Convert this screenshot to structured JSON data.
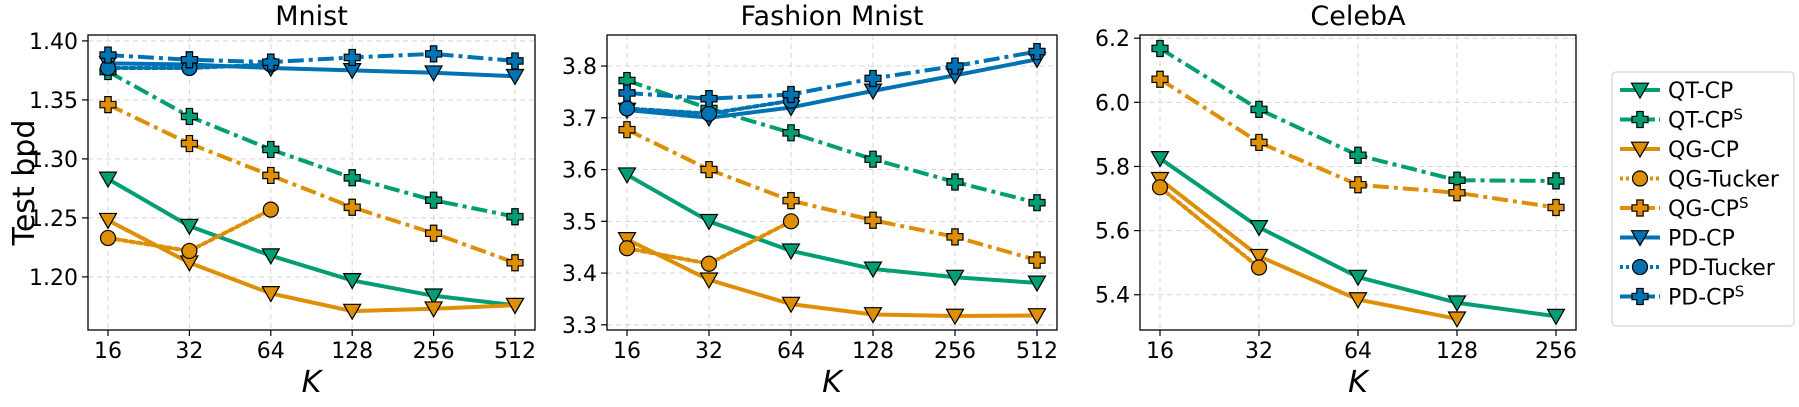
{
  "chart_data": [
    {
      "type": "line",
      "title": "Mnist",
      "xlabel": "K",
      "ylabel": "Test bpd",
      "x": [
        16,
        32,
        64,
        128,
        256,
        512
      ],
      "xscale": "log2",
      "ylim": [
        1.155,
        1.405
      ],
      "yticks": [
        1.2,
        1.25,
        1.3,
        1.35,
        1.4
      ],
      "grid": true,
      "series": [
        {
          "name": "QT-CP",
          "values": [
            1.283,
            1.243,
            1.218,
            1.197,
            1.184,
            1.176
          ]
        },
        {
          "name": "QT-CP^S",
          "values": [
            1.374,
            1.336,
            1.308,
            1.284,
            1.265,
            1.251
          ]
        },
        {
          "name": "QG-CP",
          "values": [
            1.248,
            1.212,
            1.186,
            1.171,
            1.173,
            1.176
          ]
        },
        {
          "name": "QG-Tucker",
          "values": [
            1.233,
            1.222,
            1.257,
            null,
            null,
            null
          ]
        },
        {
          "name": "QG-CP^S",
          "values": [
            1.346,
            1.313,
            1.286,
            1.259,
            1.237,
            1.212
          ]
        },
        {
          "name": "PD-CP",
          "values": [
            1.381,
            1.38,
            1.377,
            1.375,
            1.373,
            1.37
          ]
        },
        {
          "name": "PD-Tucker",
          "values": [
            1.377,
            1.377,
            1.38,
            null,
            null,
            null
          ]
        },
        {
          "name": "PD-CP^S",
          "values": [
            1.388,
            1.384,
            1.382,
            1.386,
            1.389,
            1.383
          ]
        }
      ]
    },
    {
      "type": "line",
      "title": "Fashion Mnist",
      "xlabel": "K",
      "ylabel": "",
      "x": [
        16,
        32,
        64,
        128,
        256,
        512
      ],
      "xscale": "log2",
      "ylim": [
        3.29,
        3.86
      ],
      "yticks": [
        3.3,
        3.4,
        3.5,
        3.6,
        3.7,
        3.8
      ],
      "grid": true,
      "series": [
        {
          "name": "QT-CP",
          "values": [
            3.59,
            3.5,
            3.443,
            3.408,
            3.392,
            3.381
          ]
        },
        {
          "name": "QT-CP^S",
          "values": [
            3.772,
            3.718,
            3.671,
            3.62,
            3.576,
            3.536
          ]
        },
        {
          "name": "QG-CP",
          "values": [
            3.465,
            3.387,
            3.34,
            3.32,
            3.317,
            3.318
          ]
        },
        {
          "name": "QG-Tucker",
          "values": [
            3.448,
            3.418,
            3.5,
            null,
            null,
            null
          ]
        },
        {
          "name": "QG-CP^S",
          "values": [
            3.677,
            3.6,
            3.54,
            3.502,
            3.47,
            3.425
          ]
        },
        {
          "name": "PD-CP",
          "values": [
            3.715,
            3.7,
            3.72,
            3.752,
            3.782,
            3.813
          ]
        },
        {
          "name": "PD-Tucker",
          "values": [
            3.718,
            3.708,
            3.733,
            null,
            null,
            null
          ]
        },
        {
          "name": "PD-CP^S",
          "values": [
            3.748,
            3.737,
            3.745,
            3.776,
            3.8,
            3.828
          ]
        }
      ]
    },
    {
      "type": "line",
      "title": "CelebA",
      "xlabel": "K",
      "ylabel": "",
      "x": [
        16,
        32,
        64,
        128,
        256
      ],
      "xscale": "log2",
      "ylim": [
        5.29,
        6.21
      ],
      "yticks": [
        5.4,
        5.6,
        5.8,
        6.0,
        6.2
      ],
      "grid": true,
      "series": [
        {
          "name": "QT-CP",
          "values": [
            5.825,
            5.61,
            5.455,
            5.375,
            5.333
          ]
        },
        {
          "name": "QT-CP^S",
          "values": [
            6.168,
            5.978,
            5.835,
            5.757,
            5.755
          ]
        },
        {
          "name": "QG-CP",
          "values": [
            5.76,
            5.52,
            5.385,
            5.325,
            null
          ]
        },
        {
          "name": "QG-Tucker",
          "values": [
            5.735,
            5.485,
            null,
            null,
            null
          ]
        },
        {
          "name": "QG-CP^S",
          "values": [
            6.072,
            5.875,
            5.743,
            5.718,
            5.672
          ]
        }
      ]
    }
  ],
  "legend": {
    "placement": "right",
    "entries": [
      {
        "base": "QT-CP",
        "sup": ""
      },
      {
        "base": "QT-CP",
        "sup": "S"
      },
      {
        "base": "QG-CP",
        "sup": ""
      },
      {
        "base": "QG-Tucker",
        "sup": ""
      },
      {
        "base": "QG-CP",
        "sup": "S"
      },
      {
        "base": "PD-CP",
        "sup": ""
      },
      {
        "base": "PD-Tucker",
        "sup": ""
      },
      {
        "base": "PD-CP",
        "sup": "S"
      }
    ]
  },
  "styles": {
    "QT-CP": {
      "color": "#029e73",
      "dash": "solid",
      "marker": "triangle-down"
    },
    "QT-CP^S": {
      "color": "#029e73",
      "dash": "dashdot",
      "marker": "plus"
    },
    "QG-CP": {
      "color": "#de8f05",
      "dash": "solid",
      "marker": "triangle-down"
    },
    "QG-Tucker": {
      "color": "#de8f05",
      "dash": "dotted",
      "marker": "circle"
    },
    "QG-CP^S": {
      "color": "#de8f05",
      "dash": "dashdot",
      "marker": "plus"
    },
    "PD-CP": {
      "color": "#0173b2",
      "dash": "solid",
      "marker": "triangle-down"
    },
    "PD-Tucker": {
      "color": "#0173b2",
      "dash": "dotted",
      "marker": "circle"
    },
    "PD-CP^S": {
      "color": "#0173b2",
      "dash": "dashdot",
      "marker": "plus"
    }
  }
}
